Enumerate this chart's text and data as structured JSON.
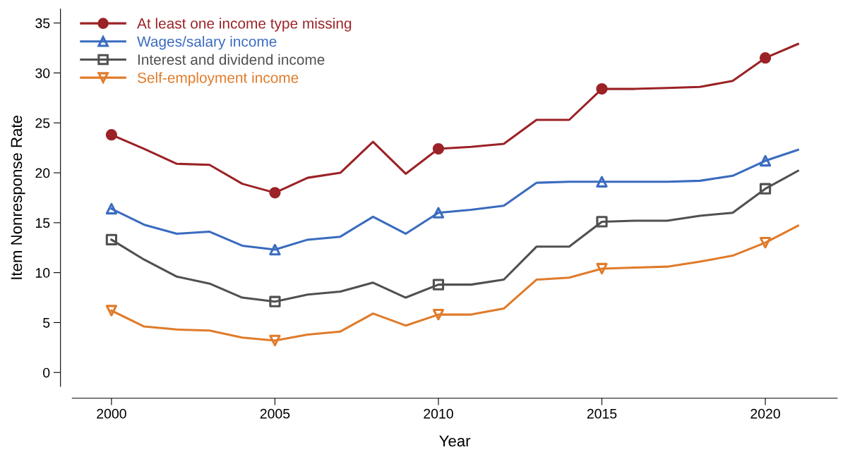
{
  "chart_data": {
    "type": "line",
    "xlabel": "Year",
    "ylabel": "Item Nonresponse Rate",
    "x": [
      2000,
      2001,
      2002,
      2003,
      2004,
      2005,
      2006,
      2007,
      2008,
      2009,
      2010,
      2011,
      2012,
      2013,
      2014,
      2015,
      2016,
      2017,
      2018,
      2019,
      2020,
      2021
    ],
    "xlim": [
      1998.8,
      2022.2
    ],
    "xticks": [
      2000,
      2005,
      2010,
      2015,
      2020
    ],
    "ylim": [
      -1.4,
      36.4
    ],
    "yticks": [
      0,
      5,
      10,
      15,
      20,
      25,
      30,
      35
    ],
    "grid": false,
    "legend": "top left",
    "line_style": "solid",
    "marker": "none",
    "series": [
      {
        "name": "At least one income type missing",
        "color": "#9b2226",
        "values": [
          23.8,
          22.4,
          20.9,
          20.8,
          18.9,
          18.0,
          19.5,
          20.0,
          23.1,
          19.9,
          22.4,
          22.6,
          22.9,
          25.3,
          25.3,
          28.4,
          28.4,
          28.5,
          28.6,
          29.2,
          31.5,
          32.9
        ]
      },
      {
        "name": "Wages/salary income",
        "color": "#3a6bbf",
        "values": [
          16.4,
          14.8,
          13.9,
          14.1,
          12.7,
          12.3,
          13.3,
          13.6,
          15.6,
          13.9,
          16.0,
          16.3,
          16.7,
          19.0,
          19.1,
          19.1,
          19.1,
          19.1,
          19.2,
          19.7,
          21.2,
          22.3
        ]
      },
      {
        "name": "Interest and dividend income",
        "color": "#505050",
        "values": [
          13.3,
          11.3,
          9.6,
          8.9,
          7.5,
          7.1,
          7.8,
          8.1,
          9.0,
          7.5,
          8.8,
          8.8,
          9.3,
          12.6,
          12.6,
          15.1,
          15.2,
          15.2,
          15.7,
          16.0,
          18.4,
          20.2
        ]
      },
      {
        "name": "Self-employment income",
        "color": "#e07b2a",
        "values": [
          6.2,
          4.6,
          4.3,
          4.2,
          3.5,
          3.2,
          3.8,
          4.1,
          5.9,
          4.7,
          5.8,
          5.8,
          6.4,
          9.3,
          9.5,
          10.4,
          10.5,
          10.6,
          11.1,
          11.7,
          13.0,
          14.7
        ]
      },
      {
        "type": "scatter",
        "color": "#9b2226",
        "marker": "circle",
        "x": [
          2000,
          2005,
          2010,
          2015,
          2020
        ],
        "values": [
          23.8,
          18.0,
          22.4,
          28.4,
          31.5
        ]
      },
      {
        "type": "scatter",
        "color": "#3a6bbf",
        "marker": "triangle",
        "x": [
          2000,
          2005,
          2010,
          2015,
          2020
        ],
        "values": [
          16.4,
          12.3,
          16.0,
          19.1,
          21.2
        ]
      },
      {
        "type": "scatter",
        "color": "#505050",
        "marker": "square",
        "x": [
          2000,
          2005,
          2010,
          2015,
          2020
        ],
        "values": [
          13.3,
          7.1,
          8.8,
          15.1,
          18.4
        ]
      },
      {
        "type": "scatter",
        "color": "#e07b2a",
        "marker": "triangle",
        "x": [
          2000,
          2005,
          2010,
          2015,
          2020
        ],
        "values": [
          6.2,
          3.2,
          5.8,
          10.4,
          13.0
        ]
      }
    ]
  }
}
